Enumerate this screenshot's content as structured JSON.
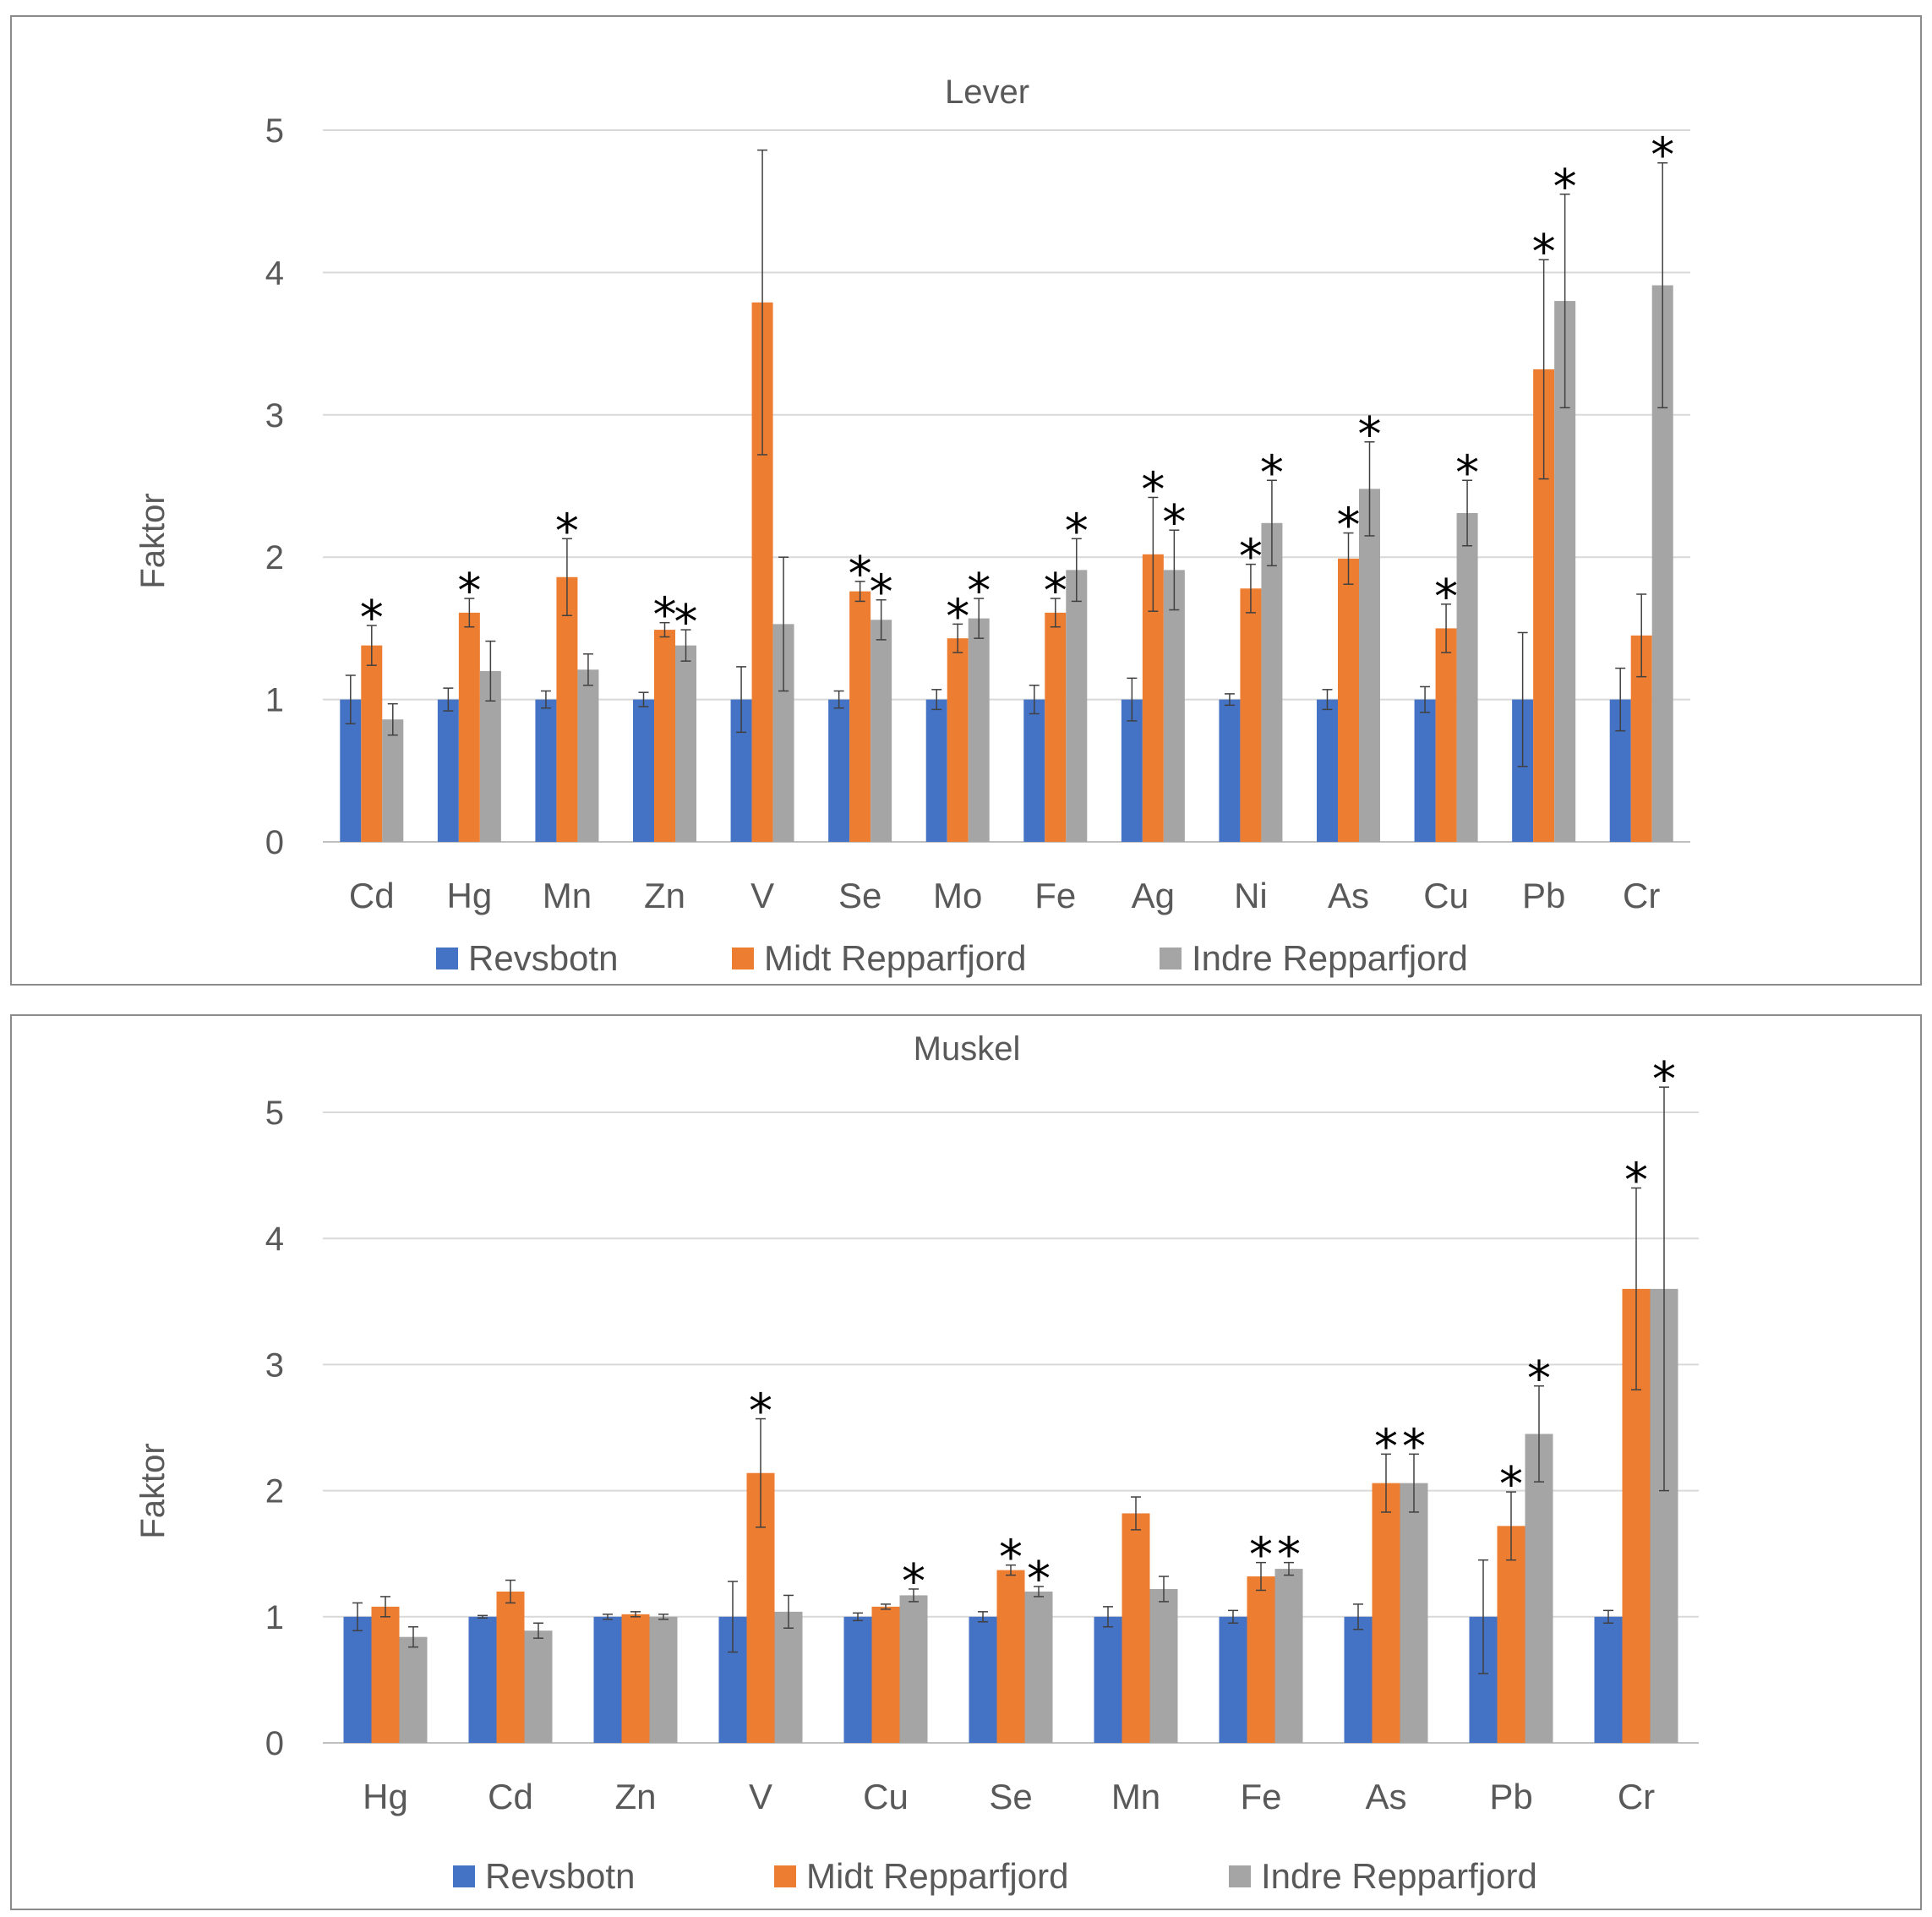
{
  "colors": {
    "revsbotn": "#4472C4",
    "midt": "#ED7D31",
    "indre": "#A5A5A5",
    "grid": "#d9d9d9",
    "text": "#595959",
    "error": "#404040"
  },
  "chart_data": [
    {
      "type": "bar",
      "title": "Lever",
      "ylabel": "Faktor",
      "xlabel": "",
      "ylim": [
        0,
        5
      ],
      "yticks": [
        "0",
        "1",
        "2",
        "3",
        "4",
        "5"
      ],
      "grid": true,
      "legend": "bottom",
      "categories": [
        "Cd",
        "Hg",
        "Mn",
        "Zn",
        "V",
        "Se",
        "Mo",
        "Fe",
        "Ag",
        "Ni",
        "As",
        "Cu",
        "Pb",
        "Cr"
      ],
      "series": [
        {
          "name": "Revsbotn",
          "color": "#4472C4",
          "values": [
            1,
            1,
            1,
            1,
            1,
            1,
            1,
            1,
            1,
            1,
            1,
            1,
            1,
            1
          ],
          "errors": [
            0.17,
            0.08,
            0.06,
            0.05,
            0.23,
            0.06,
            0.07,
            0.1,
            0.15,
            0.04,
            0.07,
            0.09,
            0.47,
            0.22
          ],
          "significant": [
            false,
            false,
            false,
            false,
            false,
            false,
            false,
            false,
            false,
            false,
            false,
            false,
            false,
            false
          ]
        },
        {
          "name": "Midt Repparfjord",
          "color": "#ED7D31",
          "values": [
            1.38,
            1.61,
            1.86,
            1.49,
            3.79,
            1.76,
            1.43,
            1.61,
            2.02,
            1.78,
            1.99,
            1.5,
            3.32,
            1.45
          ],
          "errors": [
            0.14,
            0.1,
            0.27,
            0.05,
            1.07,
            0.07,
            0.1,
            0.1,
            0.4,
            0.17,
            0.18,
            0.17,
            0.77,
            0.29
          ],
          "significant": [
            true,
            true,
            true,
            true,
            false,
            true,
            true,
            true,
            true,
            true,
            true,
            true,
            true,
            false
          ]
        },
        {
          "name": "Indre Repparfjord",
          "color": "#A5A5A5",
          "values": [
            0.86,
            1.2,
            1.21,
            1.38,
            1.53,
            1.56,
            1.57,
            1.91,
            1.91,
            2.24,
            2.48,
            2.31,
            3.8,
            3.91
          ],
          "errors": [
            0.11,
            0.21,
            0.11,
            0.11,
            0.47,
            0.14,
            0.14,
            0.22,
            0.28,
            0.3,
            0.33,
            0.23,
            0.75,
            0.86
          ],
          "significant": [
            false,
            false,
            false,
            true,
            false,
            true,
            true,
            true,
            true,
            true,
            true,
            true,
            true,
            true
          ]
        }
      ]
    },
    {
      "type": "bar",
      "title": "Muskel",
      "ylabel": "Faktor",
      "xlabel": "",
      "ylim": [
        0,
        5
      ],
      "yticks": [
        "0",
        "1",
        "2",
        "3",
        "4",
        "5"
      ],
      "grid": true,
      "legend": "bottom",
      "categories": [
        "Hg",
        "Cd",
        "Zn",
        "V",
        "Cu",
        "Se",
        "Mn",
        "Fe",
        "As",
        "Pb",
        "Cr"
      ],
      "series": [
        {
          "name": "Revsbotn",
          "color": "#4472C4",
          "values": [
            1,
            1,
            1,
            1,
            1,
            1,
            1,
            1,
            1,
            1,
            1
          ],
          "errors": [
            0.11,
            0.01,
            0.02,
            0.28,
            0.03,
            0.04,
            0.08,
            0.05,
            0.1,
            0.45,
            0.05
          ],
          "significant": [
            false,
            false,
            false,
            false,
            false,
            false,
            false,
            false,
            false,
            false,
            false
          ]
        },
        {
          "name": "Midt Repparfjord",
          "color": "#ED7D31",
          "values": [
            1.08,
            1.2,
            1.02,
            2.14,
            1.08,
            1.37,
            1.82,
            1.32,
            2.06,
            1.72,
            3.6
          ],
          "errors": [
            0.08,
            0.09,
            0.02,
            0.43,
            0.02,
            0.04,
            0.13,
            0.11,
            0.23,
            0.27,
            0.8
          ],
          "significant": [
            false,
            false,
            false,
            true,
            false,
            true,
            false,
            true,
            true,
            true,
            true
          ]
        },
        {
          "name": "Indre Repparfjord",
          "color": "#A5A5A5",
          "values": [
            0.84,
            0.89,
            1,
            1.04,
            1.17,
            1.2,
            1.22,
            1.38,
            2.06,
            2.45,
            3.6
          ],
          "errors": [
            0.08,
            0.06,
            0.02,
            0.13,
            0.05,
            0.04,
            0.1,
            0.05,
            0.23,
            0.38,
            1.6
          ],
          "significant": [
            false,
            false,
            false,
            false,
            true,
            true,
            false,
            true,
            true,
            true,
            true
          ]
        }
      ]
    }
  ]
}
